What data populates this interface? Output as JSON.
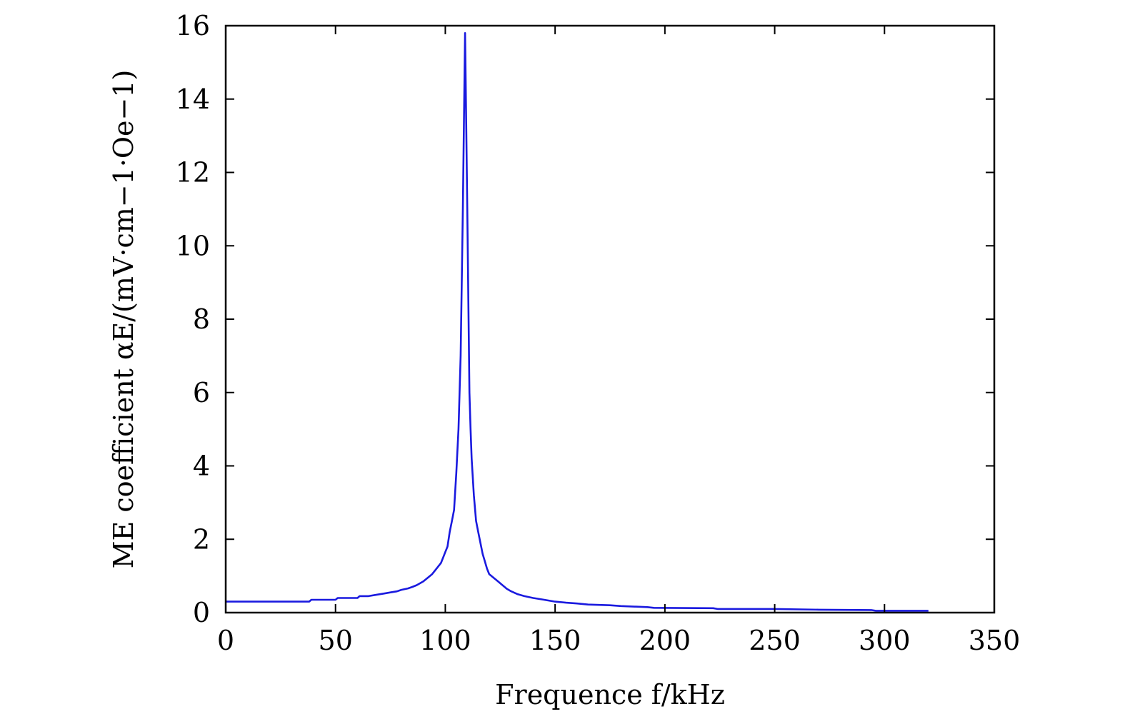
{
  "chart_data": {
    "type": "line",
    "title": "",
    "xlabel": "Frequence f/kHz",
    "ylabel": "ME coefficient αE/(mV·cm−1·Oe−1)",
    "xlim": [
      0,
      350
    ],
    "ylim": [
      0,
      16
    ],
    "xticks": [
      0,
      50,
      100,
      150,
      200,
      250,
      300,
      350
    ],
    "yticks": [
      0,
      2,
      4,
      6,
      8,
      10,
      12,
      14,
      16
    ],
    "grid": false,
    "legend": "none",
    "colors": {
      "series": "#1a1adf"
    },
    "series": [
      {
        "x": [
          0,
          20,
          38,
          39,
          50,
          51,
          60,
          61,
          65,
          68,
          70,
          72,
          75,
          78,
          80,
          83,
          85,
          87,
          90,
          92,
          94,
          96,
          98,
          99,
          100,
          101,
          102,
          103,
          104,
          105,
          106,
          107,
          108,
          108.5,
          109,
          109.5,
          110,
          110.5,
          111,
          111.5,
          112,
          113,
          114,
          115,
          116,
          117,
          118,
          119,
          120,
          122,
          124,
          126,
          128,
          130,
          133,
          136,
          140,
          145,
          150,
          155,
          160,
          165,
          175,
          180,
          192,
          195,
          222,
          224,
          250,
          270,
          294,
          296,
          320
        ],
        "y": [
          0.3,
          0.3,
          0.3,
          0.35,
          0.35,
          0.4,
          0.4,
          0.45,
          0.45,
          0.48,
          0.5,
          0.52,
          0.55,
          0.58,
          0.62,
          0.66,
          0.7,
          0.75,
          0.85,
          0.95,
          1.05,
          1.2,
          1.35,
          1.5,
          1.65,
          1.8,
          2.2,
          2.5,
          2.8,
          3.8,
          5.0,
          7.0,
          11.0,
          13.5,
          15.8,
          13.5,
          11.0,
          8.5,
          6.0,
          5.0,
          4.2,
          3.2,
          2.5,
          2.2,
          1.9,
          1.6,
          1.4,
          1.2,
          1.05,
          0.95,
          0.85,
          0.75,
          0.65,
          0.58,
          0.5,
          0.45,
          0.4,
          0.35,
          0.3,
          0.27,
          0.25,
          0.22,
          0.2,
          0.18,
          0.15,
          0.13,
          0.12,
          0.1,
          0.1,
          0.08,
          0.07,
          0.05,
          0.05
        ]
      }
    ]
  }
}
